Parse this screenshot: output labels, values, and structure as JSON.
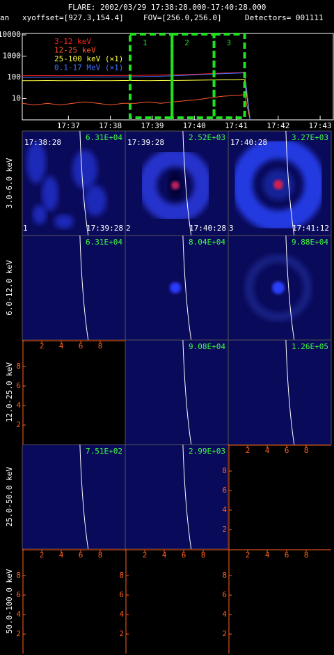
{
  "header": {
    "title": "FLARE: 2002/03/29 17:38:28.000-17:40:28.000",
    "info": [
      "an",
      "xyoffset=[927.3,154.4]",
      "FOV=[256.0,256.0]",
      "Detectors= 001111"
    ]
  },
  "chart_data": {
    "type": "line",
    "log_y": true,
    "x": [
      1055.9,
      1056.2,
      1056.5,
      1056.8,
      1057.1,
      1057.4,
      1057.7,
      1058.0,
      1058.3,
      1058.6,
      1058.9,
      1059.2,
      1059.5,
      1059.8,
      1060.1,
      1060.4,
      1060.7,
      1061.0,
      1061.15,
      1061.2,
      1061.33
    ],
    "xlim": [
      1055.9,
      1063.33
    ],
    "xticks": [
      {
        "value": 1057,
        "label": "17:37"
      },
      {
        "value": 1058,
        "label": "17:38"
      },
      {
        "value": 1059,
        "label": "17:39"
      },
      {
        "value": 1060,
        "label": "17:40"
      },
      {
        "value": 1061,
        "label": "17:41"
      },
      {
        "value": 1062,
        "label": "17:42"
      },
      {
        "value": 1063,
        "label": "17:43"
      }
    ],
    "ylim": [
      1,
      10000
    ],
    "yticks": [
      10,
      100,
      1000,
      10000
    ],
    "series": [
      {
        "name": "3-12 keV",
        "color": "#ff2020",
        "values": [
          120,
          120,
          121,
          120,
          121,
          122,
          121,
          122,
          123,
          124,
          126,
          128,
          132,
          136,
          142,
          150,
          158,
          165,
          168,
          168,
          1
        ]
      },
      {
        "name": "12-25 keV",
        "color": "#ff5a28",
        "values": [
          6,
          5,
          6,
          5,
          6,
          7,
          6,
          5,
          6,
          6,
          7,
          6,
          7,
          8,
          9,
          11,
          13,
          14,
          15,
          15,
          1
        ]
      },
      {
        "name": "25-100 keV (×1)",
        "color": "#ffff40",
        "values": [
          70,
          70,
          71,
          70,
          70,
          71,
          70,
          70,
          71,
          71,
          70,
          71,
          72,
          73,
          74,
          75,
          76,
          76,
          77,
          77,
          1
        ]
      },
      {
        "name": "0.1-17 MeV (×1)",
        "color": "#4070ff",
        "values": [
          100,
          100,
          101,
          101,
          102,
          102,
          103,
          104,
          105,
          107,
          110,
          113,
          118,
          125,
          133,
          142,
          150,
          157,
          160,
          160,
          1
        ]
      }
    ],
    "intervals": [
      {
        "label": "1",
        "start": 1058.47,
        "end": 1059.47
      },
      {
        "label": "2",
        "start": 1059.47,
        "end": 1060.47
      },
      {
        "label": "3",
        "start": 1060.47,
        "end": 1061.2
      }
    ],
    "interval_color": "#20e020"
  },
  "panels": {
    "axis_ticks": [
      "2",
      "4",
      "6",
      "8"
    ],
    "rows": [
      {
        "energy": "3.0-6.0 keV",
        "cells": [
          {
            "max": "6.31E+04",
            "start": "17:38:28",
            "end": "17:39:28",
            "index": "1"
          },
          {
            "max": "2.52E+03",
            "start": "17:39:28",
            "end": "17:40:28",
            "index": "2"
          },
          {
            "max": "3.27E+03",
            "start": "17:40:28",
            "end": "17:41:12",
            "index": "3"
          }
        ]
      },
      {
        "energy": "6.0-12.0 keV",
        "cells": [
          {
            "max": "6.31E+04"
          },
          {
            "max": "8.04E+04"
          },
          {
            "max": "9.88E+04"
          }
        ]
      },
      {
        "energy": "12.0-25.0 keV",
        "cells": [
          null,
          {
            "max": "9.08E+04"
          },
          {
            "max": "1.26E+05"
          }
        ]
      },
      {
        "energy": "25.0-50.0 keV",
        "cells": [
          {
            "max": "7.51E+02"
          },
          {
            "max": "2.99E+03"
          },
          null
        ]
      },
      {
        "energy": "50.0-100.0 keV",
        "cells": [
          null,
          null,
          null
        ]
      }
    ]
  }
}
